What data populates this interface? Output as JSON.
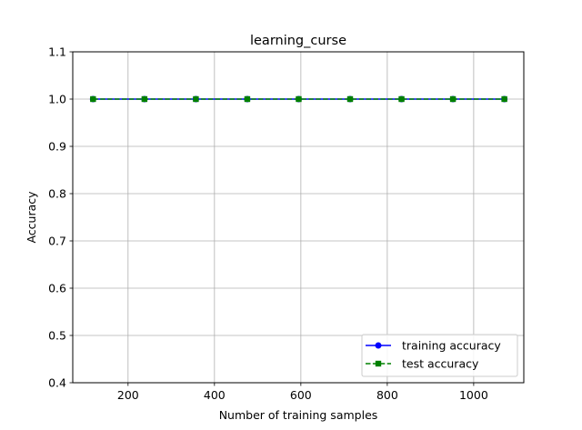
{
  "chart_data": {
    "type": "line",
    "title": "learning_curse",
    "xlabel": "Number of training samples",
    "ylabel": "Accuracy",
    "xlim": [
      72,
      1116
    ],
    "ylim": [
      0.4,
      1.1
    ],
    "xticks": [
      200,
      400,
      600,
      800,
      1000
    ],
    "yticks": [
      0.4,
      0.5,
      0.6,
      0.7,
      0.8,
      0.9,
      1.0,
      1.1
    ],
    "xtick_labels": [
      "200",
      "400",
      "600",
      "800",
      "1000"
    ],
    "ytick_labels": [
      "0.4",
      "0.5",
      "0.6",
      "0.7",
      "0.8",
      "0.9",
      "1.0",
      "1.1"
    ],
    "grid": true,
    "legend_position": "lower-right",
    "x": [
      119,
      238,
      357,
      476,
      595,
      714,
      833,
      952,
      1071
    ],
    "series": [
      {
        "name": "training accuracy",
        "values": [
          1.0,
          1.0,
          1.0,
          1.0,
          1.0,
          1.0,
          1.0,
          1.0,
          1.0
        ],
        "color": "#0000ff",
        "marker": "circle",
        "linestyle": "solid"
      },
      {
        "name": "test accuracy",
        "values": [
          1.0,
          1.0,
          1.0,
          1.0,
          1.0,
          1.0,
          1.0,
          1.0,
          1.0
        ],
        "color": "#008000",
        "marker": "square",
        "linestyle": "dashed"
      }
    ]
  }
}
